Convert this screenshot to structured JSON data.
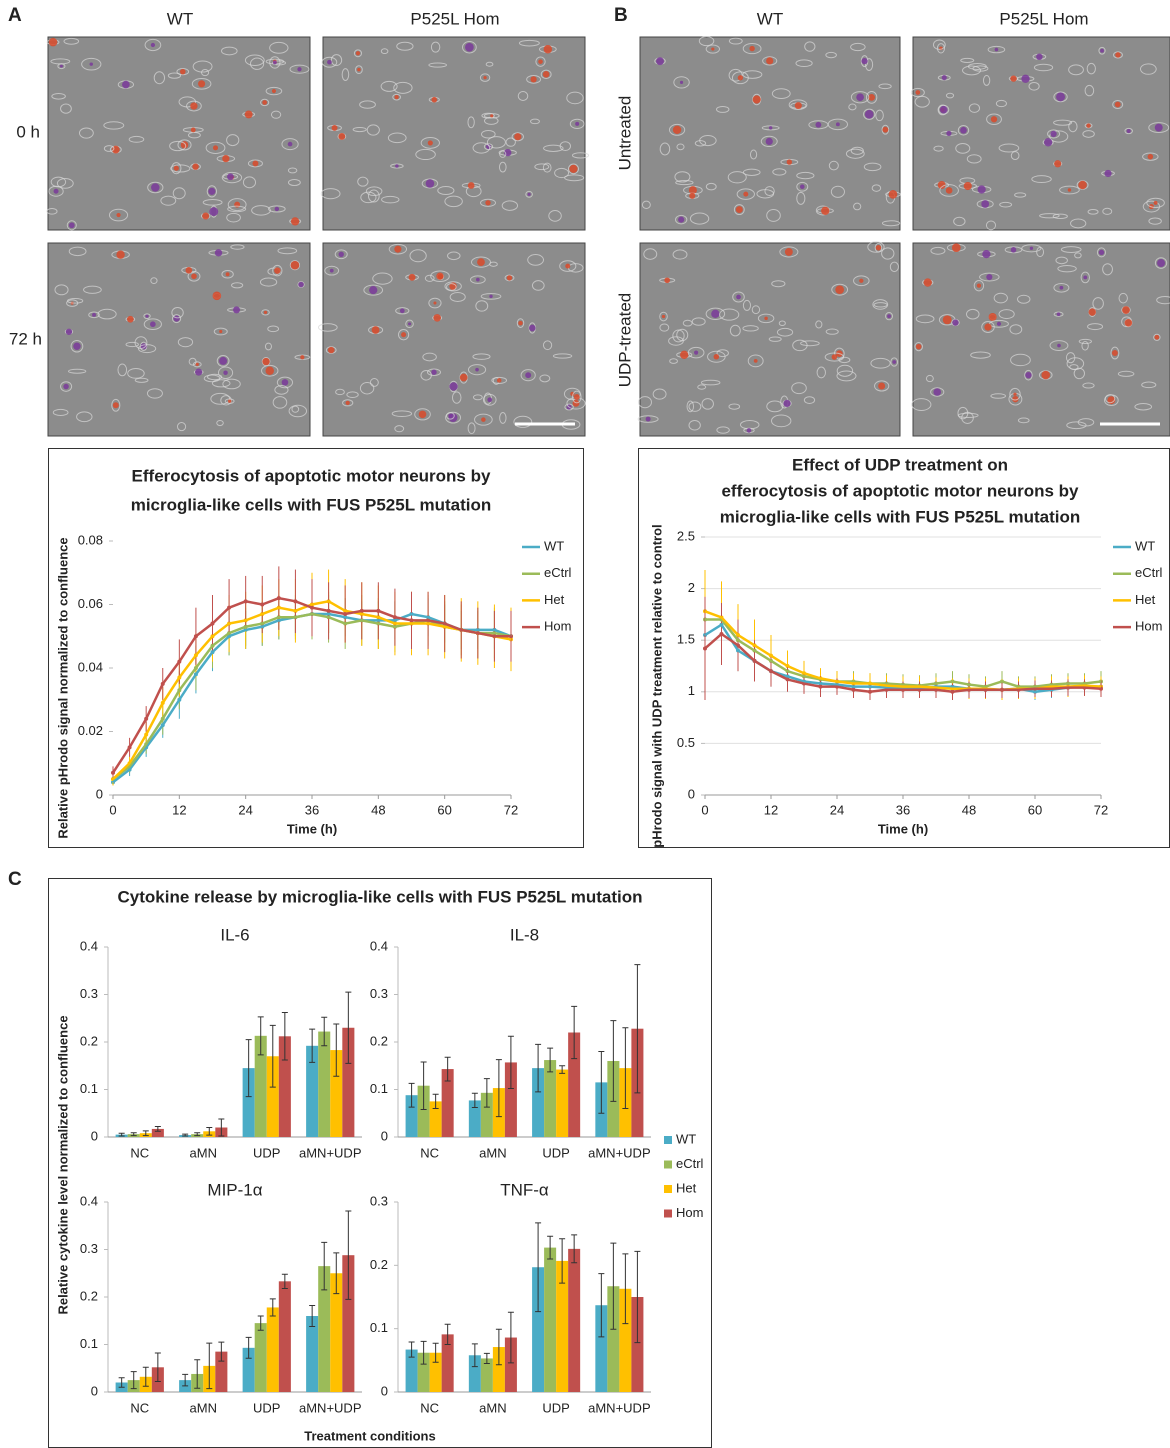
{
  "panel_labels": [
    "A",
    "B",
    "C"
  ],
  "microscopy": {
    "a_columns": [
      "WT",
      "P525L Hom"
    ],
    "a_rows": [
      "0 h",
      "72 h"
    ],
    "b_columns": [
      "WT",
      "P525L Hom"
    ],
    "b_rows": [
      "Untreated",
      "UDP-treated"
    ]
  },
  "panel_c": {
    "title": "Cytokine release by microglia-like cells with FUS P525L mutation",
    "ylabel": "Relative cytokine level normalized to confluence",
    "xlabel": "Treatment conditions"
  },
  "chart_data": [
    {
      "type": "line",
      "title": [
        "Efferocytosis of apoptotic motor neurons by",
        "microglia-like cells with FUS P525L mutation"
      ],
      "xlabel": "Time (h)",
      "ylabel": "Relative pHrodo signal normalized to confluence",
      "x": [
        0,
        3,
        6,
        9,
        12,
        15,
        18,
        21,
        24,
        27,
        30,
        33,
        36,
        39,
        42,
        45,
        48,
        51,
        54,
        57,
        60,
        63,
        66,
        69,
        72
      ],
      "xlim": [
        0,
        72
      ],
      "xticks": [
        0,
        12,
        24,
        36,
        48,
        60,
        72
      ],
      "ylim": [
        0,
        0.08
      ],
      "yticks": [
        0,
        0.02,
        0.04,
        0.06,
        0.08
      ],
      "grid": false,
      "legend": "right",
      "series": [
        {
          "name": "WT",
          "color": "#4bacc6",
          "values": [
            0.004,
            0.008,
            0.015,
            0.022,
            0.03,
            0.038,
            0.045,
            0.05,
            0.052,
            0.053,
            0.055,
            0.056,
            0.057,
            0.057,
            0.056,
            0.055,
            0.055,
            0.055,
            0.057,
            0.056,
            0.054,
            0.052,
            0.052,
            0.052,
            0.05
          ],
          "errors": [
            0.001,
            0.002,
            0.003,
            0.004,
            0.006,
            0.006,
            0.006,
            0.006,
            0.006,
            0.006,
            0.006,
            0.006,
            0.006,
            0.006,
            0.006,
            0.006,
            0.006,
            0.006,
            0.006,
            0.006,
            0.006,
            0.006,
            0.006,
            0.006,
            0.006
          ]
        },
        {
          "name": "eCtrl",
          "color": "#9bbb59",
          "values": [
            0.005,
            0.009,
            0.016,
            0.024,
            0.033,
            0.04,
            0.047,
            0.051,
            0.053,
            0.054,
            0.056,
            0.056,
            0.057,
            0.056,
            0.054,
            0.055,
            0.054,
            0.053,
            0.054,
            0.055,
            0.053,
            0.052,
            0.051,
            0.051,
            0.05
          ],
          "errors": [
            0.001,
            0.002,
            0.003,
            0.005,
            0.006,
            0.007,
            0.007,
            0.007,
            0.006,
            0.007,
            0.007,
            0.007,
            0.008,
            0.008,
            0.008,
            0.008,
            0.008,
            0.008,
            0.008,
            0.008,
            0.008,
            0.008,
            0.008,
            0.008,
            0.008
          ]
        },
        {
          "name": "Het",
          "color": "#ffc000",
          "values": [
            0.005,
            0.01,
            0.019,
            0.029,
            0.037,
            0.044,
            0.05,
            0.054,
            0.055,
            0.057,
            0.059,
            0.058,
            0.06,
            0.061,
            0.058,
            0.057,
            0.056,
            0.054,
            0.054,
            0.054,
            0.053,
            0.052,
            0.051,
            0.05,
            0.049
          ],
          "errors": [
            0.002,
            0.002,
            0.004,
            0.005,
            0.006,
            0.007,
            0.008,
            0.009,
            0.009,
            0.009,
            0.009,
            0.01,
            0.01,
            0.01,
            0.01,
            0.01,
            0.01,
            0.01,
            0.01,
            0.01,
            0.01,
            0.01,
            0.01,
            0.01,
            0.01
          ]
        },
        {
          "name": "Hom",
          "color": "#c0504d",
          "values": [
            0.007,
            0.015,
            0.024,
            0.035,
            0.042,
            0.05,
            0.054,
            0.059,
            0.061,
            0.06,
            0.062,
            0.061,
            0.059,
            0.058,
            0.057,
            0.058,
            0.058,
            0.056,
            0.055,
            0.055,
            0.054,
            0.052,
            0.051,
            0.05,
            0.05
          ],
          "errors": [
            0.002,
            0.003,
            0.004,
            0.005,
            0.007,
            0.009,
            0.009,
            0.009,
            0.008,
            0.009,
            0.01,
            0.01,
            0.009,
            0.009,
            0.009,
            0.009,
            0.009,
            0.009,
            0.009,
            0.009,
            0.009,
            0.009,
            0.008,
            0.008,
            0.008
          ]
        }
      ]
    },
    {
      "type": "line",
      "title": [
        "Effect of UDP treatment on",
        "efferocytosis of apoptotic motor neurons by",
        "microglia-like cells with FUS P525L mutation"
      ],
      "xlabel": "Time (h)",
      "ylabel": "pHrodo signal with UDP treatment relative to control",
      "x": [
        0,
        3,
        6,
        9,
        12,
        15,
        18,
        21,
        24,
        27,
        30,
        33,
        36,
        39,
        42,
        45,
        48,
        51,
        54,
        57,
        60,
        63,
        66,
        69,
        72
      ],
      "xlim": [
        0,
        72
      ],
      "xticks": [
        0,
        12,
        24,
        36,
        48,
        60,
        72
      ],
      "ylim": [
        0,
        2.5
      ],
      "yticks": [
        0,
        0.5,
        1,
        1.5,
        2,
        2.5
      ],
      "grid": true,
      "legend": "right",
      "series": [
        {
          "name": "WT",
          "color": "#4bacc6",
          "values": [
            1.55,
            1.65,
            1.4,
            1.3,
            1.2,
            1.15,
            1.1,
            1.08,
            1.07,
            1.05,
            1.05,
            1.04,
            1.04,
            1.03,
            1.05,
            1.05,
            1.03,
            1.02,
            1.02,
            1.03,
            1.0,
            1.02,
            1.04,
            1.05,
            1.05
          ],
          "errors": [
            0.1,
            0.15,
            0.2,
            0.2,
            0.15,
            0.12,
            0.1,
            0.1,
            0.08,
            0.08,
            0.08,
            0.08,
            0.08,
            0.08,
            0.08,
            0.08,
            0.08,
            0.08,
            0.08,
            0.08,
            0.08,
            0.08,
            0.08,
            0.08,
            0.08
          ]
        },
        {
          "name": "eCtrl",
          "color": "#9bbb59",
          "values": [
            1.7,
            1.7,
            1.5,
            1.4,
            1.3,
            1.2,
            1.15,
            1.12,
            1.1,
            1.1,
            1.08,
            1.08,
            1.07,
            1.06,
            1.08,
            1.1,
            1.07,
            1.05,
            1.1,
            1.05,
            1.05,
            1.07,
            1.08,
            1.08,
            1.1
          ],
          "errors": [
            0.2,
            0.3,
            0.3,
            0.25,
            0.2,
            0.15,
            0.12,
            0.1,
            0.1,
            0.1,
            0.1,
            0.1,
            0.1,
            0.1,
            0.1,
            0.1,
            0.1,
            0.1,
            0.1,
            0.1,
            0.1,
            0.1,
            0.1,
            0.1,
            0.1
          ]
        },
        {
          "name": "Het",
          "color": "#ffc000",
          "values": [
            1.78,
            1.72,
            1.55,
            1.45,
            1.35,
            1.25,
            1.18,
            1.13,
            1.1,
            1.08,
            1.08,
            1.06,
            1.05,
            1.05,
            1.04,
            1.03,
            1.03,
            1.03,
            1.02,
            1.03,
            1.03,
            1.05,
            1.05,
            1.06,
            1.05
          ],
          "errors": [
            0.4,
            0.35,
            0.3,
            0.25,
            0.2,
            0.15,
            0.12,
            0.1,
            0.1,
            0.1,
            0.1,
            0.1,
            0.1,
            0.1,
            0.1,
            0.1,
            0.1,
            0.1,
            0.1,
            0.1,
            0.1,
            0.1,
            0.1,
            0.1,
            0.1
          ]
        },
        {
          "name": "Hom",
          "color": "#c0504d",
          "values": [
            1.42,
            1.56,
            1.45,
            1.3,
            1.2,
            1.12,
            1.08,
            1.05,
            1.05,
            1.02,
            1.0,
            1.02,
            1.02,
            1.02,
            1.02,
            1.0,
            1.02,
            1.02,
            1.02,
            1.02,
            1.03,
            1.03,
            1.04,
            1.04,
            1.03
          ],
          "errors": [
            0.5,
            0.3,
            0.25,
            0.2,
            0.15,
            0.12,
            0.1,
            0.1,
            0.08,
            0.08,
            0.08,
            0.08,
            0.08,
            0.08,
            0.08,
            0.08,
            0.08,
            0.08,
            0.08,
            0.08,
            0.08,
            0.08,
            0.08,
            0.08,
            0.08
          ]
        }
      ]
    },
    {
      "type": "bar",
      "title": "IL-6",
      "categories": [
        "NC",
        "aMN",
        "UDP",
        "aMN+UDP"
      ],
      "ylim": [
        0,
        0.4
      ],
      "yticks": [
        0,
        0.1,
        0.2,
        0.3,
        0.4
      ],
      "grid": false,
      "legend": "right",
      "series": [
        {
          "name": "WT",
          "color": "#4bacc6",
          "values": [
            0.005,
            0.004,
            0.145,
            0.192
          ],
          "errors": [
            0.003,
            0.002,
            0.06,
            0.035
          ]
        },
        {
          "name": "eCtrl",
          "color": "#9bbb59",
          "values": [
            0.006,
            0.006,
            0.213,
            0.222
          ],
          "errors": [
            0.003,
            0.003,
            0.04,
            0.03
          ]
        },
        {
          "name": "Het",
          "color": "#ffc000",
          "values": [
            0.008,
            0.012,
            0.17,
            0.183
          ],
          "errors": [
            0.005,
            0.008,
            0.065,
            0.055
          ]
        },
        {
          "name": "Hom",
          "color": "#c0504d",
          "values": [
            0.017,
            0.02,
            0.212,
            0.23
          ],
          "errors": [
            0.005,
            0.018,
            0.05,
            0.075
          ]
        }
      ]
    },
    {
      "type": "bar",
      "title": "IL-8",
      "categories": [
        "NC",
        "aMN",
        "UDP",
        "aMN+UDP"
      ],
      "ylim": [
        0,
        0.4
      ],
      "yticks": [
        0,
        0.1,
        0.2,
        0.3,
        0.4
      ],
      "grid": false,
      "series": [
        {
          "name": "WT",
          "color": "#4bacc6",
          "values": [
            0.088,
            0.077,
            0.145,
            0.115
          ],
          "errors": [
            0.025,
            0.015,
            0.05,
            0.065
          ]
        },
        {
          "name": "eCtrl",
          "color": "#9bbb59",
          "values": [
            0.108,
            0.093,
            0.162,
            0.16
          ],
          "errors": [
            0.05,
            0.03,
            0.025,
            0.085
          ]
        },
        {
          "name": "Het",
          "color": "#ffc000",
          "values": [
            0.075,
            0.103,
            0.142,
            0.145
          ],
          "errors": [
            0.015,
            0.06,
            0.008,
            0.085
          ]
        },
        {
          "name": "Hom",
          "color": "#c0504d",
          "values": [
            0.143,
            0.157,
            0.22,
            0.228
          ],
          "errors": [
            0.025,
            0.055,
            0.055,
            0.135
          ]
        }
      ]
    },
    {
      "type": "bar",
      "title": "MIP-1α",
      "categories": [
        "NC",
        "aMN",
        "UDP",
        "aMN+UDP"
      ],
      "ylim": [
        0,
        0.4
      ],
      "yticks": [
        0,
        0.1,
        0.2,
        0.3,
        0.4
      ],
      "grid": false,
      "series": [
        {
          "name": "WT",
          "color": "#4bacc6",
          "values": [
            0.02,
            0.025,
            0.093,
            0.16
          ],
          "errors": [
            0.01,
            0.012,
            0.022,
            0.022
          ]
        },
        {
          "name": "eCtrl",
          "color": "#9bbb59",
          "values": [
            0.025,
            0.038,
            0.145,
            0.265
          ],
          "errors": [
            0.018,
            0.03,
            0.015,
            0.05
          ]
        },
        {
          "name": "Het",
          "color": "#ffc000",
          "values": [
            0.032,
            0.055,
            0.178,
            0.25
          ],
          "errors": [
            0.02,
            0.048,
            0.018,
            0.043
          ]
        },
        {
          "name": "Hom",
          "color": "#c0504d",
          "values": [
            0.052,
            0.085,
            0.233,
            0.288
          ],
          "errors": [
            0.03,
            0.02,
            0.015,
            0.093
          ]
        }
      ]
    },
    {
      "type": "bar",
      "title": "TNF-α",
      "categories": [
        "NC",
        "aMN",
        "UDP",
        "aMN+UDP"
      ],
      "ylim": [
        0,
        0.3
      ],
      "yticks": [
        0,
        0.1,
        0.2,
        0.3
      ],
      "grid": false,
      "series": [
        {
          "name": "WT",
          "color": "#4bacc6",
          "values": [
            0.067,
            0.058,
            0.197,
            0.137
          ],
          "errors": [
            0.012,
            0.018,
            0.07,
            0.05
          ]
        },
        {
          "name": "eCtrl",
          "color": "#9bbb59",
          "values": [
            0.062,
            0.053,
            0.228,
            0.167
          ],
          "errors": [
            0.018,
            0.008,
            0.018,
            0.068
          ]
        },
        {
          "name": "Het",
          "color": "#ffc000",
          "values": [
            0.062,
            0.071,
            0.207,
            0.163
          ],
          "errors": [
            0.015,
            0.028,
            0.035,
            0.055
          ]
        },
        {
          "name": "Hom",
          "color": "#c0504d",
          "values": [
            0.091,
            0.086,
            0.226,
            0.15
          ],
          "errors": [
            0.016,
            0.04,
            0.022,
            0.072
          ]
        }
      ]
    }
  ]
}
